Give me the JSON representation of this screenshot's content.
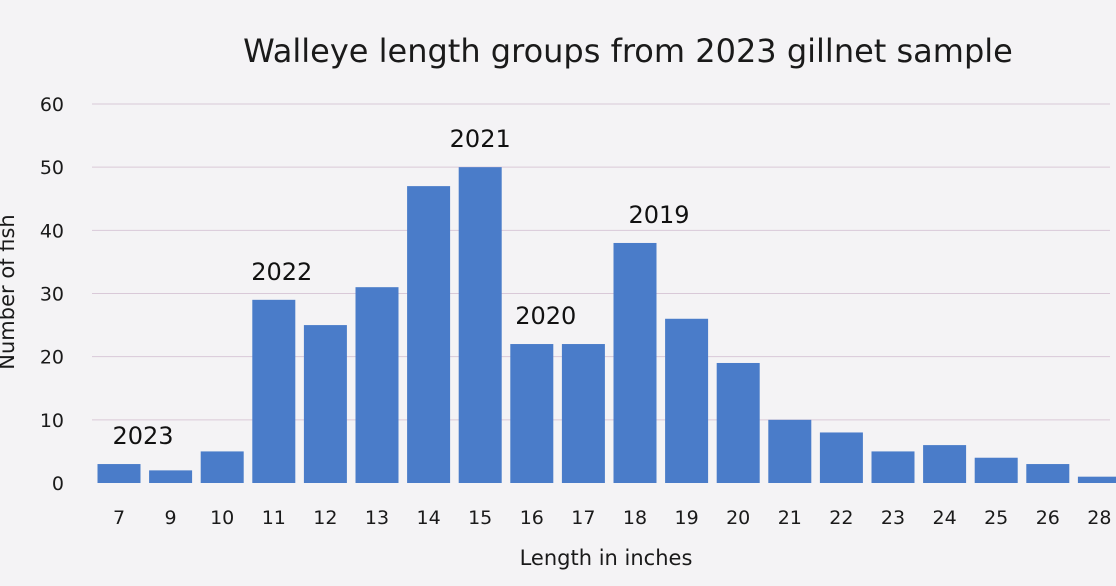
{
  "chart_data": {
    "type": "bar",
    "title": "Walleye length groups from 2023 gillnet sample",
    "xlabel": "Length in inches",
    "ylabel": "Number of fish",
    "ylim": [
      0,
      60
    ],
    "yticks": [
      0,
      10,
      20,
      30,
      40,
      50,
      60
    ],
    "grid": true,
    "categories": [
      "7",
      "9",
      "10",
      "11",
      "12",
      "13",
      "14",
      "15",
      "16",
      "17",
      "18",
      "19",
      "20",
      "21",
      "22",
      "23",
      "24",
      "25",
      "26",
      "28"
    ],
    "values": [
      3,
      2,
      5,
      29,
      25,
      31,
      47,
      50,
      22,
      22,
      38,
      26,
      19,
      10,
      8,
      5,
      6,
      4,
      3,
      1
    ],
    "bar_color": "#4a7cc9",
    "annotations": [
      {
        "text": "2023",
        "category": "7"
      },
      {
        "text": "2022",
        "category": "11"
      },
      {
        "text": "2021",
        "category": "15"
      },
      {
        "text": "2020",
        "category": "16"
      },
      {
        "text": "2019",
        "category": "18"
      }
    ]
  }
}
